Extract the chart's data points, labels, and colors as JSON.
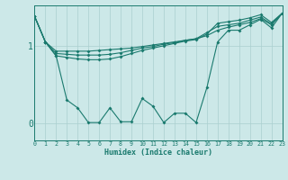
{
  "xlabel": "Humidex (Indice chaleur)",
  "bg_color": "#cce8e8",
  "line_color": "#1a7a6e",
  "grid_color": "#aacfcf",
  "xlim": [
    0,
    23
  ],
  "ylim": [
    -0.22,
    1.52
  ],
  "ytick_positions": [
    0,
    1
  ],
  "ytick_labels": [
    "0",
    "1"
  ],
  "xticks": [
    0,
    1,
    2,
    3,
    4,
    5,
    6,
    7,
    8,
    9,
    10,
    11,
    12,
    13,
    14,
    15,
    16,
    17,
    18,
    19,
    20,
    21,
    22,
    23
  ],
  "series": [
    {
      "x": [
        0,
        1,
        2,
        3,
        4,
        5,
        6,
        7,
        8,
        9,
        10,
        11,
        12,
        13,
        14,
        15,
        16,
        17,
        18,
        19,
        20,
        21,
        22,
        23
      ],
      "y": [
        1.38,
        1.05,
        0.93,
        0.93,
        0.93,
        0.93,
        0.94,
        0.95,
        0.96,
        0.97,
        0.99,
        1.01,
        1.03,
        1.05,
        1.07,
        1.09,
        1.13,
        1.2,
        1.24,
        1.27,
        1.3,
        1.35,
        1.27,
        1.42
      ]
    },
    {
      "x": [
        0,
        1,
        2,
        3,
        4,
        5,
        6,
        7,
        8,
        9,
        10,
        11,
        12,
        13,
        14,
        15,
        16,
        17,
        18,
        19,
        20,
        21,
        22,
        23
      ],
      "y": [
        1.38,
        1.05,
        0.9,
        0.89,
        0.88,
        0.88,
        0.88,
        0.89,
        0.91,
        0.94,
        0.97,
        0.99,
        1.02,
        1.04,
        1.07,
        1.09,
        1.17,
        1.25,
        1.27,
        1.29,
        1.33,
        1.37,
        1.28,
        1.42
      ]
    },
    {
      "x": [
        0,
        1,
        2,
        3,
        4,
        5,
        6,
        7,
        8,
        9,
        10,
        11,
        12,
        13,
        14,
        15,
        16,
        17,
        18,
        19,
        20,
        21,
        22,
        23
      ],
      "y": [
        1.38,
        1.05,
        0.87,
        0.85,
        0.83,
        0.82,
        0.82,
        0.83,
        0.86,
        0.9,
        0.94,
        0.97,
        1.0,
        1.03,
        1.06,
        1.08,
        1.15,
        1.29,
        1.31,
        1.33,
        1.36,
        1.4,
        1.3,
        1.42
      ]
    },
    {
      "x": [
        0,
        1,
        2,
        3,
        4,
        5,
        6,
        7,
        8,
        9,
        10,
        11,
        12,
        13,
        14,
        15,
        16,
        17,
        18,
        19,
        20,
        21,
        22,
        23
      ],
      "y": [
        1.38,
        1.05,
        0.87,
        0.3,
        0.2,
        0.01,
        0.01,
        0.2,
        0.02,
        0.02,
        0.32,
        0.22,
        0.01,
        0.13,
        0.13,
        0.01,
        0.46,
        1.05,
        1.2,
        1.2,
        1.27,
        1.34,
        1.23,
        1.42
      ]
    }
  ]
}
